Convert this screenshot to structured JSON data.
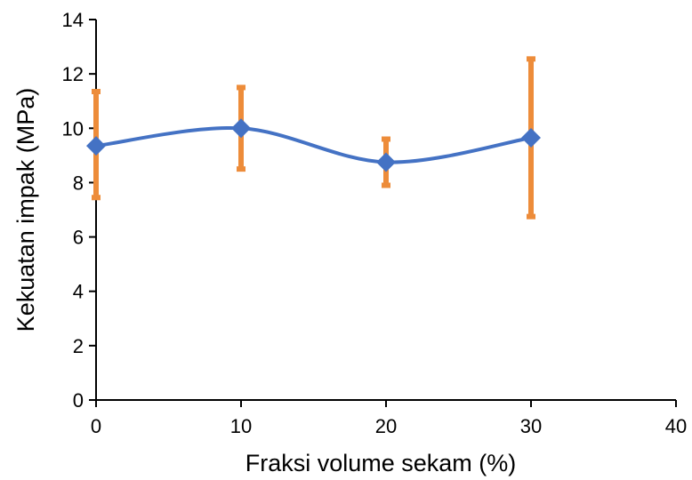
{
  "chart_data": {
    "type": "line",
    "title": "",
    "xlabel": "Fraksi volume sekam (%)",
    "ylabel": "Kekuatan impak (MPa)",
    "xlim": [
      0,
      40
    ],
    "ylim": [
      0,
      14
    ],
    "xticks": [
      0,
      10,
      20,
      30,
      40
    ],
    "yticks": [
      0,
      2,
      4,
      6,
      8,
      10,
      12,
      14
    ],
    "grid": false,
    "legend": "none",
    "series": [
      {
        "x": [
          0,
          10,
          20,
          30
        ],
        "y": [
          9.35,
          10.0,
          8.75,
          9.65
        ],
        "error_low": [
          7.45,
          8.5,
          7.9,
          6.75
        ],
        "error_high": [
          11.35,
          11.5,
          9.6,
          12.55
        ],
        "line_color": "#4472c4",
        "marker": "diamond",
        "smooth": true
      }
    ],
    "error_bar_color": "#ed8c3a",
    "axis_color": "#000000"
  }
}
